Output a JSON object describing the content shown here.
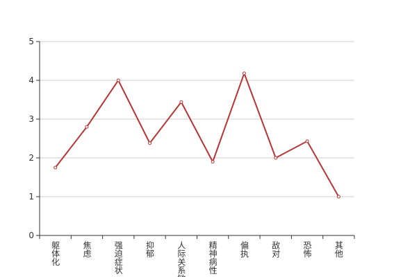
{
  "chart_data": {
    "type": "line",
    "categories": [
      "躯体化",
      "焦虑",
      "强迫症状",
      "抑郁",
      "人际关系敏感",
      "精神病性",
      "偏执",
      "敌对",
      "恐怖",
      "其他"
    ],
    "series": [
      {
        "color": "#b83333",
        "values": [
          1.75,
          2.8,
          4.0,
          2.38,
          3.44,
          1.9,
          4.18,
          2.0,
          2.43,
          1.0
        ]
      }
    ],
    "ylim": [
      0,
      5
    ],
    "yticks": [
      0,
      1,
      2,
      3,
      4,
      5
    ],
    "grid": true
  }
}
